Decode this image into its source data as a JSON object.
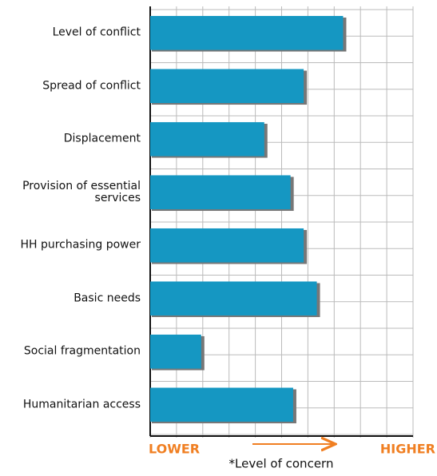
{
  "chart_data": {
    "type": "bar",
    "orientation": "horizontal",
    "categories": [
      "Level of conflict",
      "Spread of conflict",
      "Displacement",
      "Provision of essential services",
      "HH purchasing power",
      "Basic needs",
      "Social fragmentation",
      "Humanitarian access"
    ],
    "values": [
      7.4,
      5.9,
      4.4,
      5.4,
      5.9,
      6.4,
      2.0,
      5.5
    ],
    "color": "#1597c2",
    "xlim": [
      0,
      10
    ],
    "xticks": [
      0,
      1,
      2,
      3,
      4,
      5,
      6,
      7,
      8,
      9,
      10
    ],
    "grid": true,
    "x_low_label": "LOWER",
    "x_high_label": "HIGHER",
    "xlabel": "*Level of concern",
    "axis_label_color": "#f07f22"
  }
}
